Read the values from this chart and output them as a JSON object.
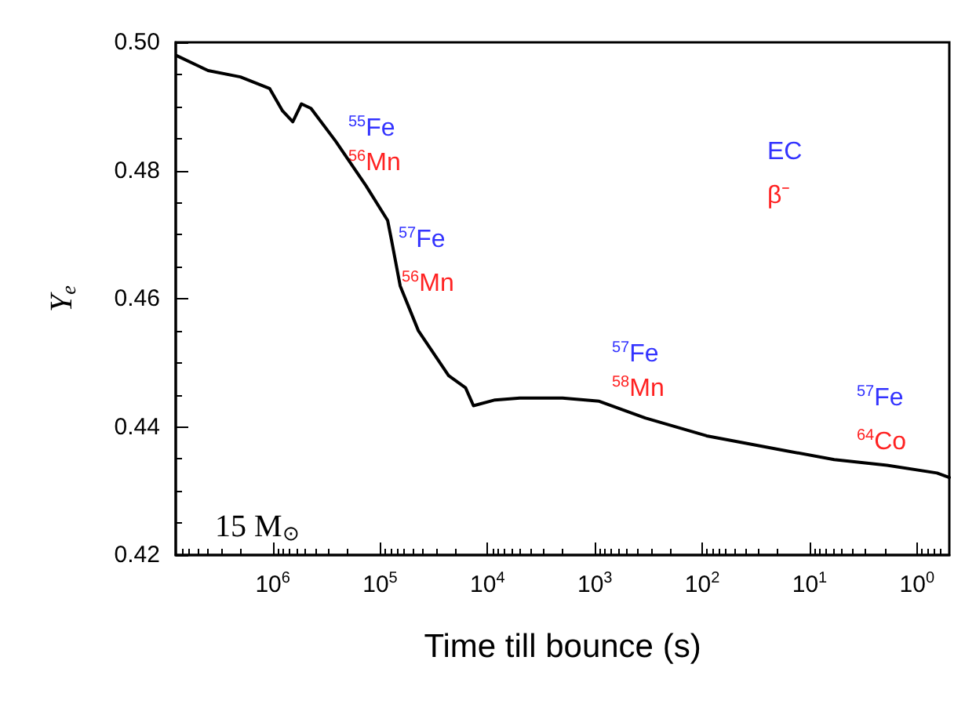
{
  "chart_data": {
    "type": "line",
    "xlabel": "Time till bounce (s)",
    "ylabel": "Y$_{e}$",
    "log": "x",
    "grid": false,
    "marker": "none",
    "line_style": "solid",
    "xlim": [
      8000000,
      0.5
    ],
    "ylim": [
      0.42,
      0.5
    ],
    "xticks": [
      {
        "value": 1000000,
        "label": "10$^{6}$"
      },
      {
        "value": 100000,
        "label": "10$^{5}$"
      },
      {
        "value": 10000,
        "label": "10$^{4}$"
      },
      {
        "value": 1000,
        "label": "10$^{3}$"
      },
      {
        "value": 100,
        "label": "10$^{2}$"
      },
      {
        "value": 10,
        "label": "10$^{1}$"
      },
      {
        "value": 1,
        "label": "10$^{0}$"
      }
    ],
    "yticks": [
      {
        "value": 0.42,
        "label": "0.42"
      },
      {
        "value": 0.44,
        "label": "0.44"
      },
      {
        "value": 0.46,
        "label": "0.46"
      },
      {
        "value": 0.48,
        "label": "0.48"
      },
      {
        "value": 0.5,
        "label": "0.50"
      }
    ],
    "x": [
      7800000,
      4000000,
      2000000,
      1070000,
      810000,
      650000,
      540000,
      440000,
      260000,
      135000,
      85000,
      78000,
      65000,
      44000,
      23000,
      16000,
      13500,
      8500,
      5000,
      2000,
      910,
      340,
      91,
      17,
      5.9,
      1.9,
      0.65,
      0.5
    ],
    "series": [
      {
        "color": "#000000",
        "values": [
          0.4979,
          0.4956,
          0.4946,
          0.4928,
          0.4893,
          0.4876,
          0.4904,
          0.4897,
          0.4846,
          0.4776,
          0.4722,
          0.469,
          0.462,
          0.455,
          0.448,
          0.4461,
          0.4433,
          0.4442,
          0.4445,
          0.4445,
          0.444,
          0.4414,
          0.4386,
          0.4363,
          0.4349,
          0.434,
          0.4328,
          0.4321
        ]
      }
    ],
    "annotations": [
      "$^{55}$Fe",
      "$^{56}$Mn",
      "$^{57}$Fe",
      "$^{56}$Mn",
      "$^{57}$Fe",
      "$^{58}$Mn",
      "$^{57}$Fe",
      "$^{64}$Co",
      "EC",
      "β⁻",
      "15 M$_{⊙}$"
    ]
  }
}
